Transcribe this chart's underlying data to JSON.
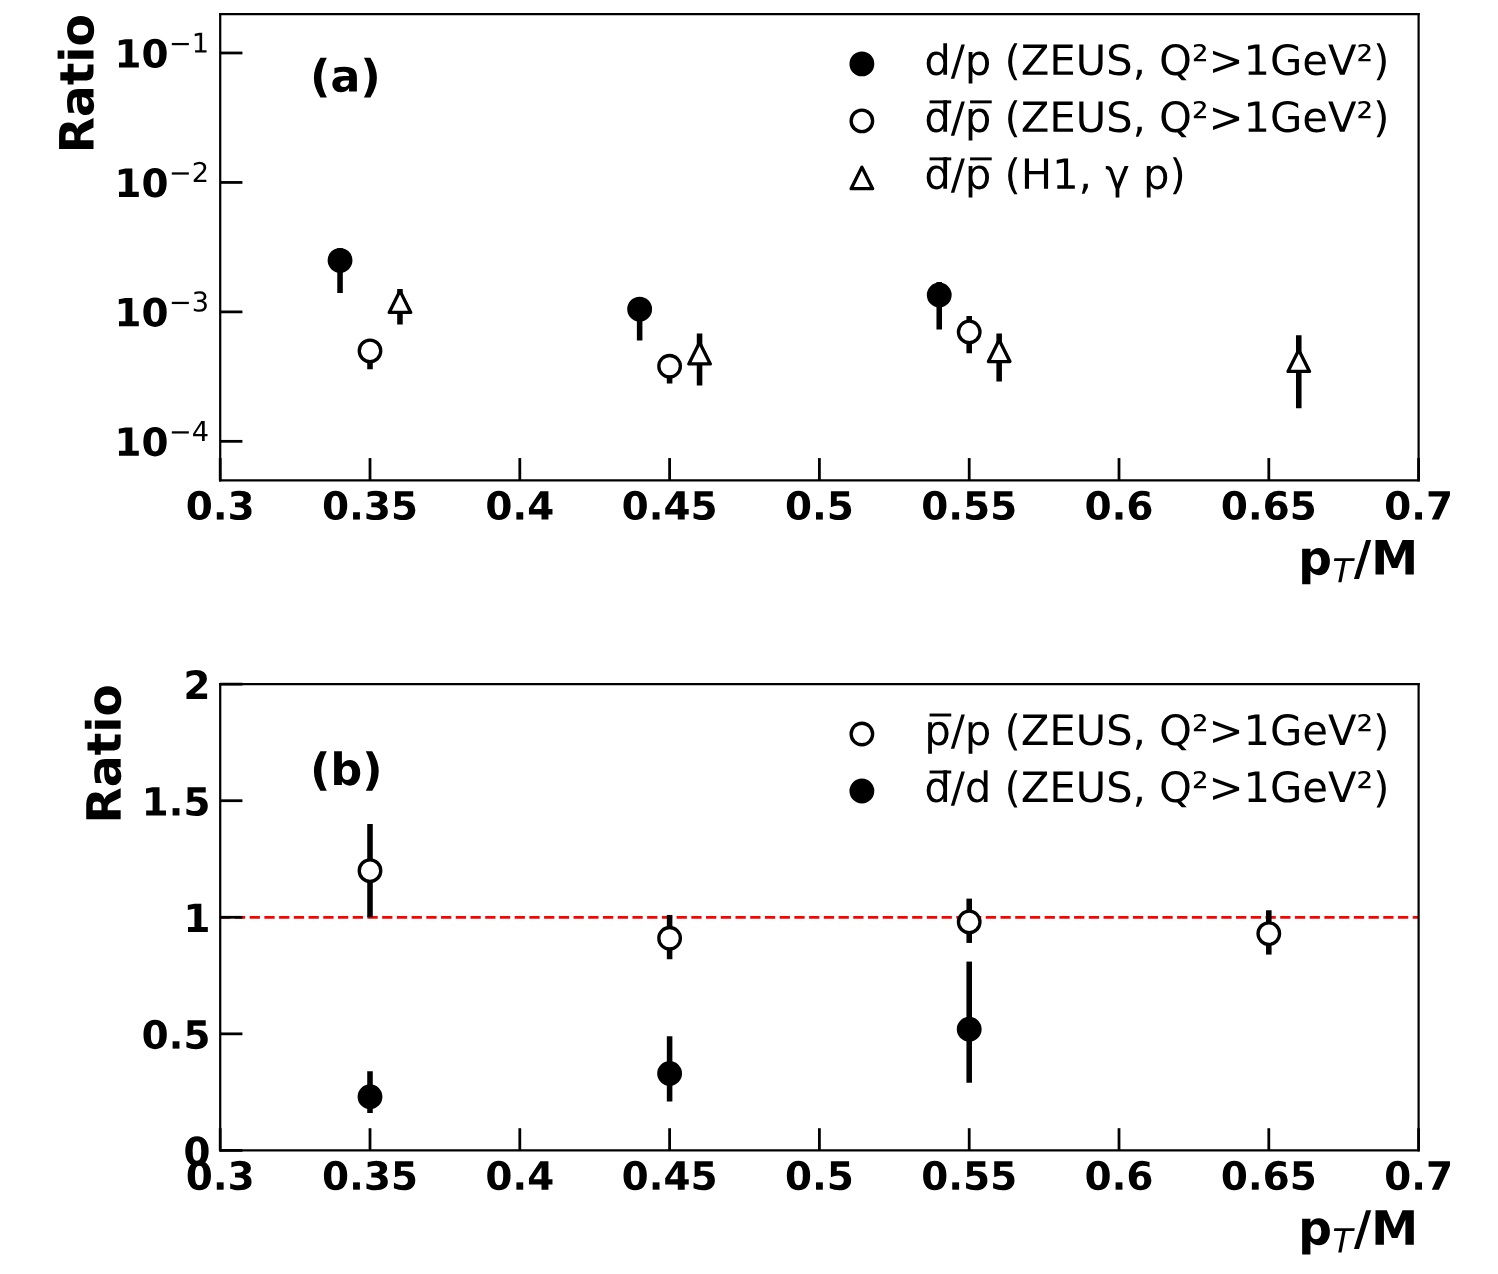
{
  "chart_data": [
    {
      "type": "scatter",
      "xlabel": "p$_{T}$/M",
      "ylabel": "Ratio",
      "log": "y",
      "xlim": [
        0.3,
        0.7
      ],
      "xticks": [
        0.3,
        0.35,
        0.4,
        0.45,
        0.5,
        0.55,
        0.6,
        0.65,
        0.7
      ],
      "ylim": [
        5e-05,
        0.2
      ],
      "yticks": [
        {
          "value": 0.0001,
          "label": "10$^{−4}$"
        },
        {
          "value": 0.001,
          "label": "10$^{−3}$"
        },
        {
          "value": 0.01,
          "label": "10$^{−2}$"
        },
        {
          "value": 0.1,
          "label": "10$^{−1}$"
        }
      ],
      "grid": false,
      "legend": "top right",
      "annotations": [
        "(a)"
      ],
      "series": [
        {
          "name": "d/p (ZEUS, Q²>1GeV²)",
          "color": "#000000",
          "marker": "circle",
          "x": [
            0.34,
            0.44,
            0.54
          ],
          "values": [
            0.0025,
            0.00105,
            0.00135
          ],
          "errors": [
            [
              0.0014,
              0.0031
            ],
            [
              0.0006,
              0.0013
            ],
            [
              0.00073,
              0.0017
            ]
          ]
        },
        {
          "name": "d̅/p̅ (ZEUS, Q²>1GeV²)",
          "color": "#ffffff",
          "marker": "circle",
          "x": [
            0.35,
            0.45,
            0.55
          ],
          "values": [
            0.0005,
            0.00038,
            0.0007
          ],
          "errors": [
            [
              0.00036,
              0.00061
            ],
            [
              0.00028,
              0.00047
            ],
            [
              0.00048,
              0.00093
            ]
          ]
        },
        {
          "name": "d̅/p̅ (H1, γ p)",
          "color": "#ffffff",
          "marker": "triangle",
          "x": [
            0.36,
            0.46,
            0.56,
            0.66
          ],
          "values": [
            0.0012,
            0.00048,
            0.0005,
            0.00042
          ],
          "errors": [
            [
              0.0008,
              0.0015
            ],
            [
              0.00027,
              0.00068
            ],
            [
              0.00029,
              0.00068
            ],
            [
              0.00018,
              0.00066
            ]
          ]
        }
      ]
    },
    {
      "type": "scatter",
      "xlabel": "p$_{T}$/M",
      "ylabel": "Ratio",
      "xlim": [
        0.3,
        0.7
      ],
      "xticks": [
        0.3,
        0.35,
        0.4,
        0.45,
        0.5,
        0.55,
        0.6,
        0.65,
        0.7
      ],
      "ylim": [
        0,
        2
      ],
      "yticks": [
        0,
        0.5,
        1,
        1.5,
        2
      ],
      "grid": false,
      "legend": "top right",
      "annotations": [
        "(b)"
      ],
      "ref_lines": [
        {
          "axis": "y",
          "value": 1,
          "color": "#ff0000",
          "line_style": "dashed"
        }
      ],
      "series": [
        {
          "name": "p̅/p (ZEUS, Q²>1GeV²)",
          "color": "#ffffff",
          "marker": "circle",
          "x": [
            0.35,
            0.45,
            0.55,
            0.65
          ],
          "values": [
            1.2,
            0.91,
            0.98,
            0.93
          ],
          "errors": [
            [
              1.0,
              1.4
            ],
            [
              0.82,
              1.01
            ],
            [
              0.89,
              1.08
            ],
            [
              0.84,
              1.03
            ]
          ]
        },
        {
          "name": "d̅/d (ZEUS, Q²>1GeV²)",
          "color": "#000000",
          "marker": "circle",
          "x": [
            0.35,
            0.45,
            0.55
          ],
          "values": [
            0.23,
            0.33,
            0.52
          ],
          "errors": [
            [
              0.16,
              0.34
            ],
            [
              0.21,
              0.49
            ],
            [
              0.29,
              0.81
            ]
          ]
        }
      ]
    }
  ]
}
